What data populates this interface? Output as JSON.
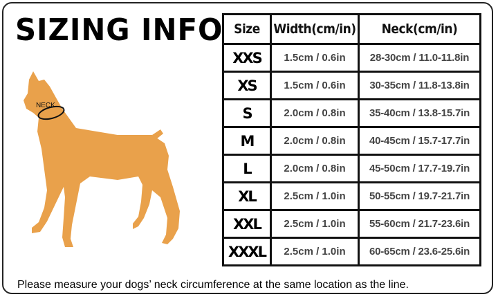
{
  "title": "SIZING INFO",
  "dog_label": "NECK",
  "colors": {
    "dog": "#E9A14B",
    "border": "#111111"
  },
  "table": {
    "headers": [
      "Size",
      "Width(cm/in)",
      "Neck(cm/in)"
    ],
    "rows": [
      {
        "size": "XXS",
        "width": "1.5cm / 0.6in",
        "neck": "28-30cm / 11.0-11.8in"
      },
      {
        "size": "XS",
        "width": "1.5cm / 0.6in",
        "neck": "30-35cm / 11.8-13.8in"
      },
      {
        "size": "S",
        "width": "2.0cm / 0.8in",
        "neck": "35-40cm / 13.8-15.7in"
      },
      {
        "size": "M",
        "width": "2.0cm / 0.8in",
        "neck": "40-45cm / 15.7-17.7in"
      },
      {
        "size": "L",
        "width": "2.0cm / 0.8in",
        "neck": "45-50cm / 17.7-19.7in"
      },
      {
        "size": "XL",
        "width": "2.5cm / 1.0in",
        "neck": "50-55cm / 19.7-21.7in"
      },
      {
        "size": "XXL",
        "width": "2.5cm / 1.0in",
        "neck": "55-60cm / 21.7-23.6in"
      },
      {
        "size": "XXXL",
        "width": "2.5cm / 1.0in",
        "neck": "60-65cm / 23.6-25.6in"
      }
    ]
  },
  "note": "Please measure your dogs’  neck circumference at the same location as the line."
}
